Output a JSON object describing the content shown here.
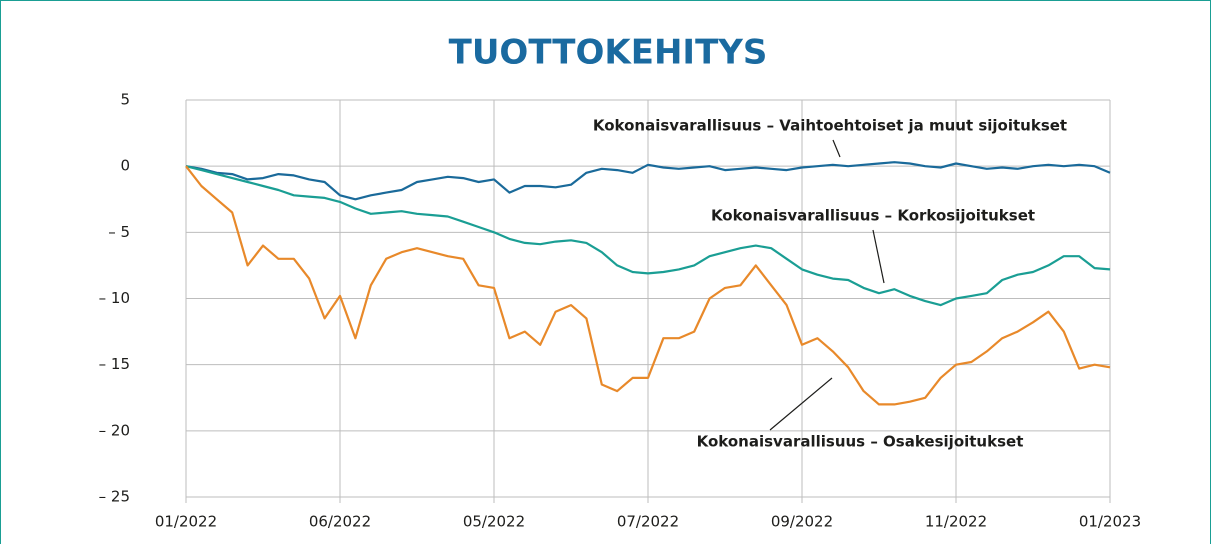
{
  "chart_data": {
    "type": "line",
    "title": "TUOTTOKEHITYS",
    "categories": [
      "01/2022",
      null,
      null,
      null,
      null,
      null,
      null,
      null,
      null,
      null,
      "06/2022",
      null,
      null,
      null,
      null,
      null,
      null,
      null,
      null,
      null,
      "05/2022",
      null,
      null,
      null,
      null,
      null,
      null,
      null,
      null,
      null,
      "07/2022",
      null,
      null,
      null,
      null,
      null,
      null,
      null,
      null,
      null,
      "09/2022",
      null,
      null,
      null,
      null,
      null,
      null,
      null,
      null,
      null,
      "11/2022",
      null,
      null,
      null,
      null,
      null,
      null,
      null,
      null,
      null,
      "01/2023"
    ],
    "series": [
      {
        "name": "Kokonaisvarallisuus – Vaihtoehtoiset ja muut sijoitukset",
        "color": "#1a6a9a",
        "values": [
          0,
          -0.2,
          -0.5,
          -0.6,
          -1.0,
          -0.9,
          -0.6,
          -0.7,
          -1.0,
          -1.2,
          -2.2,
          -2.5,
          -2.2,
          -2.0,
          -1.8,
          -1.2,
          -1.0,
          -0.8,
          -0.9,
          -1.2,
          -1.0,
          -2.0,
          -1.5,
          -1.5,
          -1.6,
          -1.4,
          -0.5,
          -0.2,
          -0.3,
          -0.5,
          0.1,
          -0.1,
          -0.2,
          -0.1,
          0,
          -0.3,
          -0.2,
          -0.1,
          -0.2,
          -0.3,
          -0.1,
          0,
          0.1,
          0,
          0.1,
          0.2,
          0.3,
          0.2,
          0,
          -0.1,
          0.2,
          0,
          -0.2,
          -0.1,
          -0.2,
          0,
          0.1,
          0,
          0.1,
          0,
          -0.5
        ]
      },
      {
        "name": "Kokonaisvarallisuus – Korkosijoitukset",
        "color": "#1a9e94",
        "values": [
          0,
          -0.3,
          -0.6,
          -0.9,
          -1.2,
          -1.5,
          -1.8,
          -2.2,
          -2.3,
          -2.4,
          -2.7,
          -3.2,
          -3.6,
          -3.5,
          -3.4,
          -3.6,
          -3.7,
          -3.8,
          -4.2,
          -4.6,
          -5.0,
          -5.5,
          -5.8,
          -5.9,
          -5.7,
          -5.6,
          -5.8,
          -6.5,
          -7.5,
          -8.0,
          -8.1,
          -8.0,
          -7.8,
          -7.5,
          -6.8,
          -6.5,
          -6.2,
          -6.0,
          -6.2,
          -7.0,
          -7.8,
          -8.2,
          -8.5,
          -8.6,
          -9.2,
          -9.6,
          -9.3,
          -9.8,
          -10.2,
          -10.5,
          -10.0,
          -9.8,
          -9.6,
          -8.6,
          -8.2,
          -8.0,
          -7.5,
          -6.8,
          -6.8,
          -7.7,
          -7.8
        ]
      },
      {
        "name": "Kokonaisvarallisuus – Osakesijoitukset",
        "color": "#e8892a",
        "values": [
          0,
          -1.5,
          -2.5,
          -3.5,
          -7.5,
          -6,
          -7,
          -7,
          -8.5,
          -11.5,
          -9.8,
          -13,
          -9,
          -7,
          -6.5,
          -6.2,
          -6.5,
          -6.8,
          -7,
          -9,
          -9.2,
          -13,
          -12.5,
          -13.5,
          -11,
          -10.5,
          -11.5,
          -16.5,
          -17,
          -16,
          -16,
          -13,
          -13,
          -12.5,
          -10,
          -9.2,
          -9,
          -7.5,
          -9,
          -10.5,
          -13.5,
          -13,
          -14,
          -15.2,
          -17,
          -18,
          -18,
          -17.8,
          -17.5,
          -16,
          -15,
          -14.8,
          -14,
          -13,
          -12.5,
          -11.8,
          -11,
          -12.5,
          -15.3,
          -15,
          -15.2
        ]
      }
    ],
    "ylim": [
      -25,
      5
    ],
    "yticks": [
      {
        "value": -25,
        "label": "– 25"
      },
      {
        "value": -20,
        "label": "– 20"
      },
      {
        "value": -15,
        "label": "– 15"
      },
      {
        "value": -10,
        "label": "– 10"
      },
      {
        "value": -5,
        "label": "– 5"
      },
      0,
      5
    ],
    "grid": true
  }
}
